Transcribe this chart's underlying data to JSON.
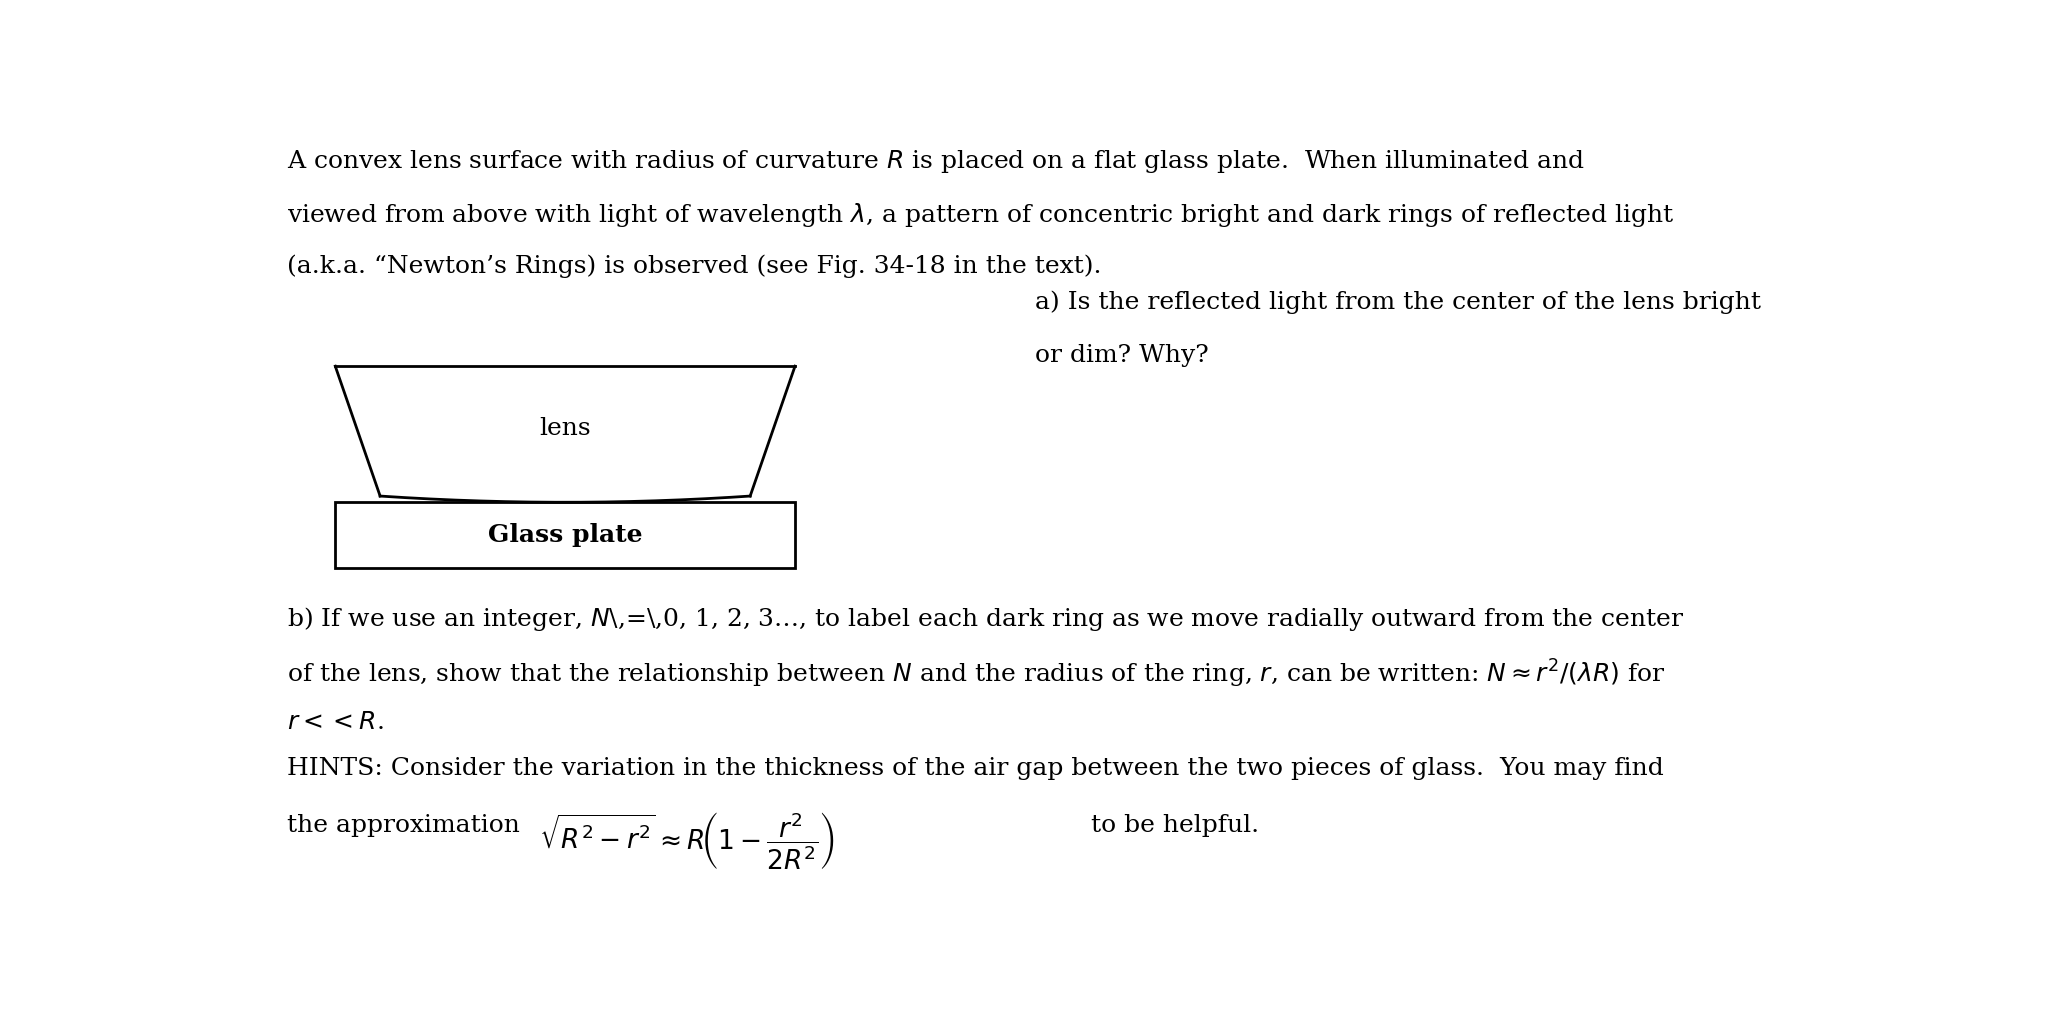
{
  "bg_color": "#ffffff",
  "text_color": "#000000",
  "fig_width": 20.67,
  "fig_height": 10.1,
  "font_size_main": 18,
  "para1_line1": "A convex lens surface with radius of curvature $R$ is placed on a flat glass plate.  When illuminated and",
  "para1_line2": "viewed from above with light of wavelength $\\lambda$, a pattern of concentric bright and dark rings of reflected light",
  "para1_line3": "(a.k.a. “Newton’s Rings) is observed (see Fig. 34-18 in the text).",
  "part_a_line1": "a) Is the reflected light from the center of the lens bright",
  "part_a_line2": "or dim? Why?",
  "part_b_line1": "b) If we use an integer, $N$\\,=\\,0, 1, 2, 3…, to label each dark ring as we move radially outward from the center",
  "part_b_line2": "of the lens, show that the relationship between $N$ and the radius of the ring, $r$, can be written: $N \\approx r^2/(\\lambda R)$ for",
  "part_b_line3": "$r << R$.",
  "hints_line1": "HINTS: Consider the variation in the thickness of the air gap between the two pieces of glass.  You may find",
  "hints_line2_prefix": "the approximation ",
  "hints_line2_formula": "$\\sqrt{R^2 - r^2} \\approx R\\!\\left(1 - \\dfrac{r^2}{2R^2}\\right)$",
  "hints_line2_suffix": " to be helpful.",
  "lens_label": "lens",
  "glass_plate_label": "Glass plate"
}
